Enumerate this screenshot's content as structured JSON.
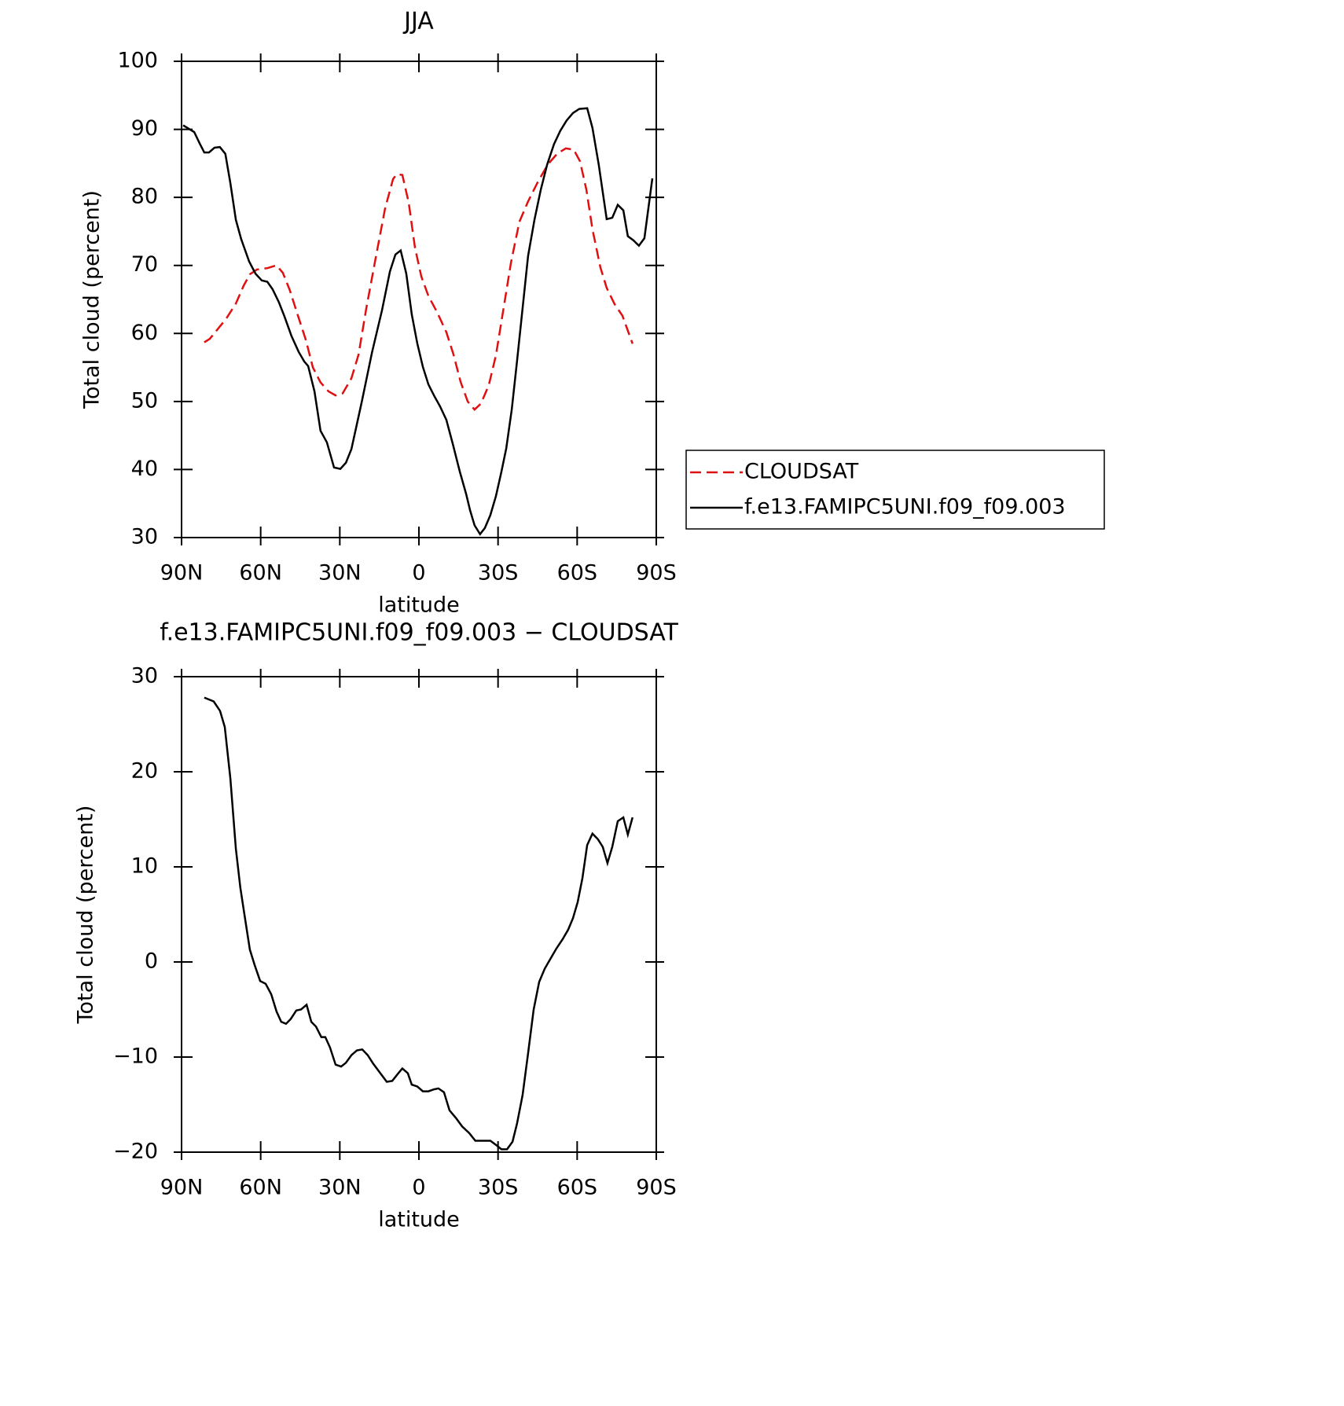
{
  "chart_data": [
    {
      "type": "line",
      "title": "JJA",
      "xlabel": "latitude",
      "ylabel": "Total cloud (percent)",
      "xlim": [
        90,
        -90
      ],
      "ylim": [
        30,
        100
      ],
      "xticks": [
        {
          "value": 90,
          "label": "90N"
        },
        {
          "value": 60,
          "label": "60N"
        },
        {
          "value": 30,
          "label": "30N"
        },
        0,
        {
          "value": -30,
          "label": "30S"
        },
        {
          "value": -60,
          "label": "60S"
        },
        {
          "value": -90,
          "label": "90S"
        }
      ],
      "yticks": [
        30,
        40,
        50,
        60,
        70,
        80,
        90,
        100
      ],
      "legend": "right",
      "series": [
        {
          "name": "CLOUDSAT",
          "color": "#e01010",
          "style": "dashed",
          "x": [
            81.4,
            79.3,
            76.6,
            73.0,
            69.4,
            66.5,
            64.1,
            61.4,
            57.5,
            54.0,
            51.6,
            48.9,
            46.2,
            42.9,
            40.2,
            37.3,
            34.3,
            31.6,
            28.9,
            25.6,
            22.9,
            20.0,
            16.4,
            12.8,
            9.8,
            8.4,
            6.3,
            3.9,
            1.5,
            -0.9,
            -3.6,
            -6.8,
            -10.4,
            -13.1,
            -15.8,
            -18.5,
            -21.1,
            -23.5,
            -26.5,
            -29.2,
            -31.9,
            -34.9,
            -38.1,
            -41.4,
            -45.0,
            -48.8,
            -52.4,
            -55.7,
            -58.7,
            -61.1,
            -63.5,
            -65.8,
            -68.8,
            -71.2,
            -74.2,
            -77.2,
            -79.6,
            -81.0
          ],
          "values": [
            58.7,
            59.2,
            60.5,
            62.2,
            64.4,
            67.0,
            68.7,
            69.4,
            69.6,
            70.0,
            68.9,
            66.3,
            63.0,
            59.1,
            55.0,
            52.8,
            51.5,
            50.9,
            51.2,
            53.4,
            56.9,
            63.6,
            71.1,
            78.4,
            82.7,
            83.4,
            83.3,
            79.3,
            72.6,
            68.4,
            65.5,
            63.2,
            60.2,
            56.9,
            52.9,
            50.0,
            48.8,
            49.7,
            52.4,
            56.8,
            63.2,
            70.4,
            76.4,
            79.4,
            82.2,
            84.8,
            86.4,
            87.2,
            87.0,
            85.3,
            81.1,
            75.3,
            69.7,
            66.7,
            64.3,
            62.6,
            60.0,
            58.5
          ]
        },
        {
          "name": "f.e13.FAMIPC5UNI.f09_f09.003",
          "color": "#000000",
          "style": "solid",
          "x": [
            89.4,
            85.2,
            83.1,
            81.4,
            79.6,
            77.5,
            75.5,
            73.4,
            71.5,
            69.4,
            67.4,
            64.4,
            62.0,
            59.6,
            57.5,
            55.5,
            53.1,
            51.0,
            48.3,
            45.6,
            43.5,
            42.0,
            39.6,
            37.3,
            34.9,
            32.2,
            29.8,
            27.7,
            25.6,
            21.7,
            17.8,
            14.0,
            11.0,
            8.9,
            6.9,
            4.8,
            2.7,
            0.6,
            -1.5,
            -3.6,
            -5.7,
            -8.0,
            -10.4,
            -12.8,
            -15.5,
            -17.9,
            -19.4,
            -21.1,
            -23.2,
            -25.0,
            -27.1,
            -29.2,
            -31.3,
            -33.1,
            -35.2,
            -37.2,
            -39.3,
            -41.4,
            -43.8,
            -46.2,
            -48.6,
            -51.2,
            -53.6,
            -56.0,
            -58.4,
            -60.8,
            -63.8,
            -65.8,
            -68.2,
            -71.2,
            -73.3,
            -75.4,
            -77.5,
            -79.2,
            -81.3,
            -83.4,
            -85.5,
            -88.5
          ],
          "values": [
            90.6,
            89.6,
            87.9,
            86.6,
            86.6,
            87.3,
            87.4,
            86.4,
            82.1,
            76.7,
            73.9,
            70.6,
            68.8,
            67.8,
            67.6,
            66.5,
            64.6,
            62.5,
            59.6,
            57.3,
            55.9,
            55.2,
            51.5,
            45.7,
            44.0,
            40.3,
            40.1,
            41.0,
            43.0,
            49.9,
            57.2,
            63.4,
            69.1,
            71.6,
            72.2,
            68.8,
            62.8,
            58.5,
            55.1,
            52.5,
            50.9,
            49.3,
            47.3,
            43.8,
            39.7,
            36.4,
            34.0,
            31.8,
            30.5,
            31.4,
            33.3,
            36.1,
            39.7,
            43.1,
            48.8,
            55.9,
            63.7,
            71.4,
            76.7,
            81.1,
            84.8,
            87.8,
            89.8,
            91.3,
            92.4,
            93.0,
            93.1,
            90.2,
            84.8,
            76.8,
            77.0,
            78.9,
            78.1,
            74.3,
            73.7,
            72.9,
            74.0,
            82.8
          ]
        }
      ]
    },
    {
      "type": "line",
      "title": "f.e13.FAMIPC5UNI.f09_f09.003 − CLOUDSAT",
      "xlabel": "latitude",
      "ylabel": "Total cloud (percent)",
      "xlim": [
        90,
        -90
      ],
      "ylim": [
        -20,
        30
      ],
      "xticks": [
        {
          "value": 90,
          "label": "90N"
        },
        {
          "value": 60,
          "label": "60N"
        },
        {
          "value": 30,
          "label": "30N"
        },
        0,
        {
          "value": -30,
          "label": "30S"
        },
        {
          "value": -60,
          "label": "60S"
        },
        {
          "value": -90,
          "label": "90S"
        }
      ],
      "yticks": [
        {
          "value": -20,
          "label": "−20"
        },
        {
          "value": -10,
          "label": "−10"
        },
        0,
        10,
        20,
        30
      ],
      "series": [
        {
          "color": "#000000",
          "style": "solid",
          "x": [
            81.4,
            77.8,
            75.4,
            73.6,
            71.5,
            69.4,
            67.7,
            65.9,
            64.1,
            62.3,
            60.2,
            58.1,
            56.0,
            54.0,
            52.2,
            50.4,
            48.6,
            46.5,
            44.7,
            42.6,
            40.8,
            39.0,
            37.0,
            35.5,
            33.7,
            31.6,
            29.5,
            27.7,
            25.6,
            23.5,
            21.5,
            19.4,
            17.3,
            14.9,
            12.2,
            10.1,
            8.1,
            6.3,
            4.2,
            2.7,
            0.6,
            -1.5,
            -3.6,
            -5.7,
            -7.4,
            -9.5,
            -11.6,
            -14.0,
            -16.4,
            -19.1,
            -21.4,
            -23.8,
            -27.1,
            -29.5,
            -31.3,
            -33.4,
            -35.5,
            -37.2,
            -39.3,
            -41.4,
            -43.5,
            -45.6,
            -47.7,
            -49.8,
            -52.1,
            -54.5,
            -56.6,
            -58.4,
            -60.2,
            -62.0,
            -63.8,
            -65.8,
            -67.9,
            -69.7,
            -71.5,
            -73.3,
            -75.4,
            -77.5,
            -79.2,
            -81.0
          ],
          "values": [
            27.8,
            27.4,
            26.4,
            24.7,
            19.3,
            11.9,
            7.8,
            4.5,
            1.3,
            -0.3,
            -2.0,
            -2.3,
            -3.4,
            -5.2,
            -6.3,
            -6.5,
            -6.0,
            -5.1,
            -5.0,
            -4.5,
            -6.3,
            -6.8,
            -7.9,
            -7.9,
            -9.0,
            -10.8,
            -11.0,
            -10.6,
            -9.8,
            -9.3,
            -9.2,
            -9.8,
            -10.7,
            -11.6,
            -12.6,
            -12.5,
            -11.8,
            -11.2,
            -11.7,
            -12.9,
            -13.1,
            -13.6,
            -13.6,
            -13.4,
            -13.3,
            -13.7,
            -15.6,
            -16.4,
            -17.3,
            -18.0,
            -18.8,
            -18.8,
            -18.8,
            -19.3,
            -19.7,
            -19.7,
            -18.9,
            -17.0,
            -14.0,
            -9.6,
            -5.0,
            -2.1,
            -0.7,
            0.3,
            1.4,
            2.4,
            3.4,
            4.6,
            6.3,
            8.8,
            12.3,
            13.5,
            12.9,
            12.1,
            10.4,
            12.1,
            14.8,
            15.2,
            13.4,
            15.2
          ]
        }
      ]
    }
  ]
}
